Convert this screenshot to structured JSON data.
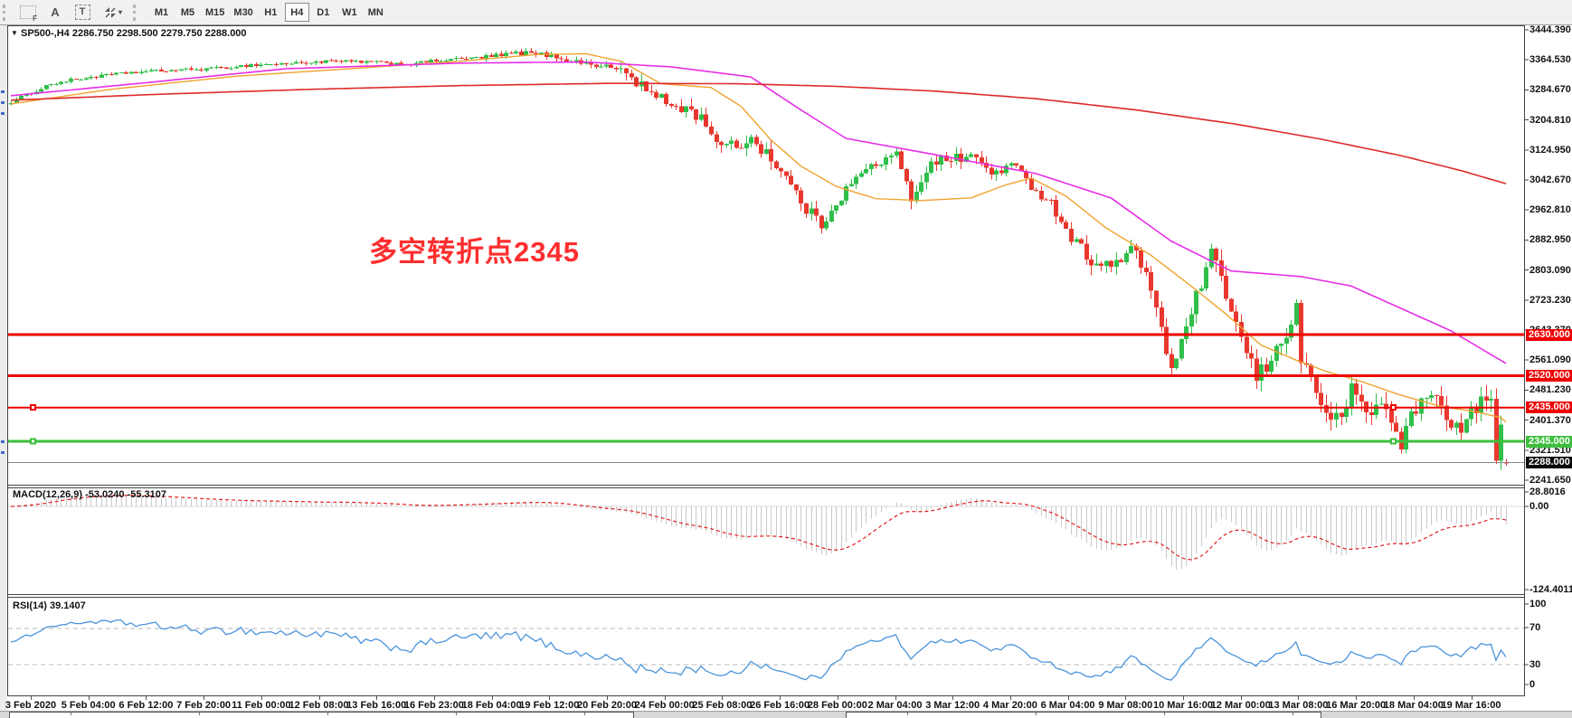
{
  "toolbar": {
    "tools": [
      {
        "name": "f-grid-tool",
        "label": "F"
      },
      {
        "name": "text-label-tool",
        "label": "A"
      },
      {
        "name": "text-box-tool",
        "label": "T"
      },
      {
        "name": "arrow-objects-tool",
        "label": ""
      }
    ],
    "timeframes": [
      "M1",
      "M5",
      "M15",
      "M30",
      "H1",
      "H4",
      "D1",
      "W1",
      "MN"
    ],
    "active_timeframe": "H4"
  },
  "chart": {
    "title": {
      "symbol": "SP500-,H4",
      "ohlc": "2286.750 2298.500 2279.750 2288.000"
    },
    "annotation": {
      "text": "多空转折点2345",
      "color": "#fe2e2e"
    },
    "levels": [
      {
        "price": "2630.000",
        "value": 2630,
        "color": "#ee0000",
        "width": 3,
        "handles": false
      },
      {
        "price": "2520.000",
        "value": 2520,
        "color": "#ee0000",
        "width": 3,
        "handles": false
      },
      {
        "price": "2435.000",
        "value": 2435,
        "color": "#ee0000",
        "width": 2,
        "handles": true
      },
      {
        "price": "2345.000",
        "value": 2345,
        "color": "#3dbf3d",
        "width": 3,
        "handles": true
      }
    ],
    "current_price": {
      "label": "2288.000",
      "value": 2288,
      "box_color": "#0a0a0a",
      "line_color": "#8a8a8a"
    },
    "price_axis_labels": [
      "3444.390",
      "3364.530",
      "3284.670",
      "3204.810",
      "3124.950",
      "3042.670",
      "2962.810",
      "2882.950",
      "2803.090",
      "2723.230",
      "2643.370",
      "2561.090",
      "2481.230",
      "2401.370",
      "2321.510",
      "2241.650"
    ],
    "time_axis_labels": [
      "3 Feb 2020",
      "5 Feb 04:00",
      "6 Feb 12:00",
      "7 Feb 20:00",
      "11 Feb 00:00",
      "12 Feb 08:00",
      "13 Feb 16:00",
      "16 Feb 23:00",
      "18 Feb 04:00",
      "19 Feb 12:00",
      "20 Feb 20:00",
      "24 Feb 00:00",
      "25 Feb 08:00",
      "26 Feb 16:00",
      "28 Feb 00:00",
      "2 Mar 04:00",
      "3 Mar 12:00",
      "4 Mar 20:00",
      "6 Mar 04:00",
      "9 Mar 08:00",
      "10 Mar 16:00",
      "12 Mar 00:00",
      "13 Mar 08:00",
      "16 Mar 20:00",
      "18 Mar 04:00",
      "19 Mar 16:00"
    ]
  },
  "indicators": {
    "macd": {
      "label": "MACD(12,26,9) -53.0240 -55.3107",
      "axis_labels": [
        "28.8016",
        "0.00",
        "-124.4011"
      ],
      "fast": 12,
      "slow": 26,
      "signal": 9,
      "histogram_color": "#c9c9c9",
      "signal_color": "#e02020"
    },
    "rsi": {
      "label": "RSI(14) 39.1407",
      "axis_labels": [
        "100",
        "70",
        "30",
        "0"
      ],
      "period": 14,
      "levels": [
        70,
        30
      ],
      "line_color": "#4a94db"
    }
  },
  "chart_data": {
    "type": "candlestick",
    "symbol": "SP500-",
    "timeframe": "H4",
    "bars": 300,
    "visible_price_range": [
      2241.65,
      3444.39
    ],
    "last_bar_ohlc": {
      "open": 2286.75,
      "high": 2298.5,
      "low": 2279.75,
      "close": 2288.0
    },
    "current_price": 2288.0,
    "horizontal_levels": [
      2630,
      2520,
      2435,
      2345
    ],
    "up_color": "#2fbf4a",
    "down_color": "#e8382e",
    "close_path_anchors": [
      [
        0,
        3252
      ],
      [
        8,
        3300
      ],
      [
        16,
        3318
      ],
      [
        24,
        3330
      ],
      [
        32,
        3336
      ],
      [
        40,
        3340
      ],
      [
        48,
        3350
      ],
      [
        56,
        3354
      ],
      [
        64,
        3360
      ],
      [
        72,
        3358
      ],
      [
        80,
        3352
      ],
      [
        84,
        3360
      ],
      [
        88,
        3365
      ],
      [
        96,
        3372
      ],
      [
        102,
        3383
      ],
      [
        107,
        3377
      ],
      [
        112,
        3362
      ],
      [
        117,
        3350
      ],
      [
        122,
        3338
      ],
      [
        125,
        3305
      ],
      [
        129,
        3262
      ],
      [
        133,
        3240
      ],
      [
        136,
        3228
      ],
      [
        139,
        3195
      ],
      [
        142,
        3128
      ],
      [
        145,
        3135
      ],
      [
        148,
        3152
      ],
      [
        151,
        3118
      ],
      [
        155,
        3048
      ],
      [
        159,
        2965
      ],
      [
        162,
        2925
      ],
      [
        165,
        2985
      ],
      [
        169,
        3048
      ],
      [
        173,
        3088
      ],
      [
        177,
        3108
      ],
      [
        180,
        2992
      ],
      [
        184,
        3095
      ],
      [
        188,
        3098
      ],
      [
        192,
        3108
      ],
      [
        196,
        3062
      ],
      [
        200,
        3082
      ],
      [
        204,
        3030
      ],
      [
        208,
        2980
      ],
      [
        212,
        2890
      ],
      [
        216,
        2830
      ],
      [
        220,
        2810
      ],
      [
        224,
        2855
      ],
      [
        227,
        2800
      ],
      [
        230,
        2650
      ],
      [
        232,
        2530
      ],
      [
        234,
        2600
      ],
      [
        236,
        2700
      ],
      [
        238,
        2760
      ],
      [
        240,
        2840
      ],
      [
        243,
        2740
      ],
      [
        246,
        2615
      ],
      [
        249,
        2515
      ],
      [
        252,
        2560
      ],
      [
        255,
        2640
      ],
      [
        257,
        2700
      ],
      [
        258,
        2560
      ],
      [
        260,
        2520
      ],
      [
        262,
        2450
      ],
      [
        264,
        2390
      ],
      [
        266,
        2420
      ],
      [
        268,
        2480
      ],
      [
        270,
        2440
      ],
      [
        272,
        2420
      ],
      [
        274,
        2450
      ],
      [
        276,
        2400
      ],
      [
        278,
        2340
      ],
      [
        280,
        2410
      ],
      [
        282,
        2450
      ],
      [
        284,
        2470
      ],
      [
        286,
        2440
      ],
      [
        288,
        2400
      ],
      [
        290,
        2370
      ],
      [
        292,
        2420
      ],
      [
        294,
        2460
      ],
      [
        296,
        2440
      ],
      [
        297,
        2310
      ],
      [
        298,
        2385
      ],
      [
        299,
        2288
      ]
    ],
    "volatility_segments": [
      [
        0,
        95,
        8
      ],
      [
        95,
        122,
        13
      ],
      [
        122,
        165,
        32
      ],
      [
        165,
        215,
        28
      ],
      [
        215,
        240,
        36
      ],
      [
        240,
        300,
        42
      ]
    ],
    "ma_lines": [
      {
        "name": "ma-fast",
        "color": "#efa32e",
        "points": [
          [
            0,
            3246
          ],
          [
            20,
            3285
          ],
          [
            45,
            3320
          ],
          [
            70,
            3342
          ],
          [
            90,
            3360
          ],
          [
            105,
            3378
          ],
          [
            115,
            3380
          ],
          [
            122,
            3360
          ],
          [
            130,
            3300
          ],
          [
            140,
            3290
          ],
          [
            146,
            3240
          ],
          [
            152,
            3150
          ],
          [
            158,
            3080
          ],
          [
            165,
            3026
          ],
          [
            173,
            2993
          ],
          [
            182,
            2988
          ],
          [
            192,
            2995
          ],
          [
            199,
            3030
          ],
          [
            204,
            3048
          ],
          [
            211,
            3000
          ],
          [
            219,
            2915
          ],
          [
            228,
            2842
          ],
          [
            236,
            2760
          ],
          [
            243,
            2685
          ],
          [
            250,
            2602
          ],
          [
            257,
            2562
          ],
          [
            263,
            2532
          ],
          [
            270,
            2505
          ],
          [
            278,
            2468
          ],
          [
            286,
            2438
          ],
          [
            293,
            2424
          ],
          [
            298,
            2408
          ],
          [
            299,
            2396
          ]
        ]
      },
      {
        "name": "ma-mid",
        "color": "#e62ee6",
        "points": [
          [
            0,
            3268
          ],
          [
            25,
            3300
          ],
          [
            55,
            3340
          ],
          [
            90,
            3355
          ],
          [
            115,
            3358
          ],
          [
            132,
            3345
          ],
          [
            148,
            3318
          ],
          [
            158,
            3230
          ],
          [
            167,
            3154
          ],
          [
            185,
            3110
          ],
          [
            205,
            3060
          ],
          [
            220,
            2995
          ],
          [
            232,
            2880
          ],
          [
            244,
            2800
          ],
          [
            258,
            2785
          ],
          [
            268,
            2760
          ],
          [
            278,
            2700
          ],
          [
            288,
            2640
          ],
          [
            299,
            2553
          ]
        ]
      },
      {
        "name": "ma-slow",
        "color": "#dd2a2a",
        "points": [
          [
            0,
            3256
          ],
          [
            30,
            3272
          ],
          [
            60,
            3285
          ],
          [
            90,
            3295
          ],
          [
            120,
            3301
          ],
          [
            145,
            3300
          ],
          [
            165,
            3293
          ],
          [
            185,
            3280
          ],
          [
            205,
            3260
          ],
          [
            225,
            3230
          ],
          [
            245,
            3192
          ],
          [
            262,
            3152
          ],
          [
            278,
            3108
          ],
          [
            290,
            3068
          ],
          [
            299,
            3033
          ]
        ]
      }
    ]
  },
  "bottom_windows": {
    "count": 2
  }
}
